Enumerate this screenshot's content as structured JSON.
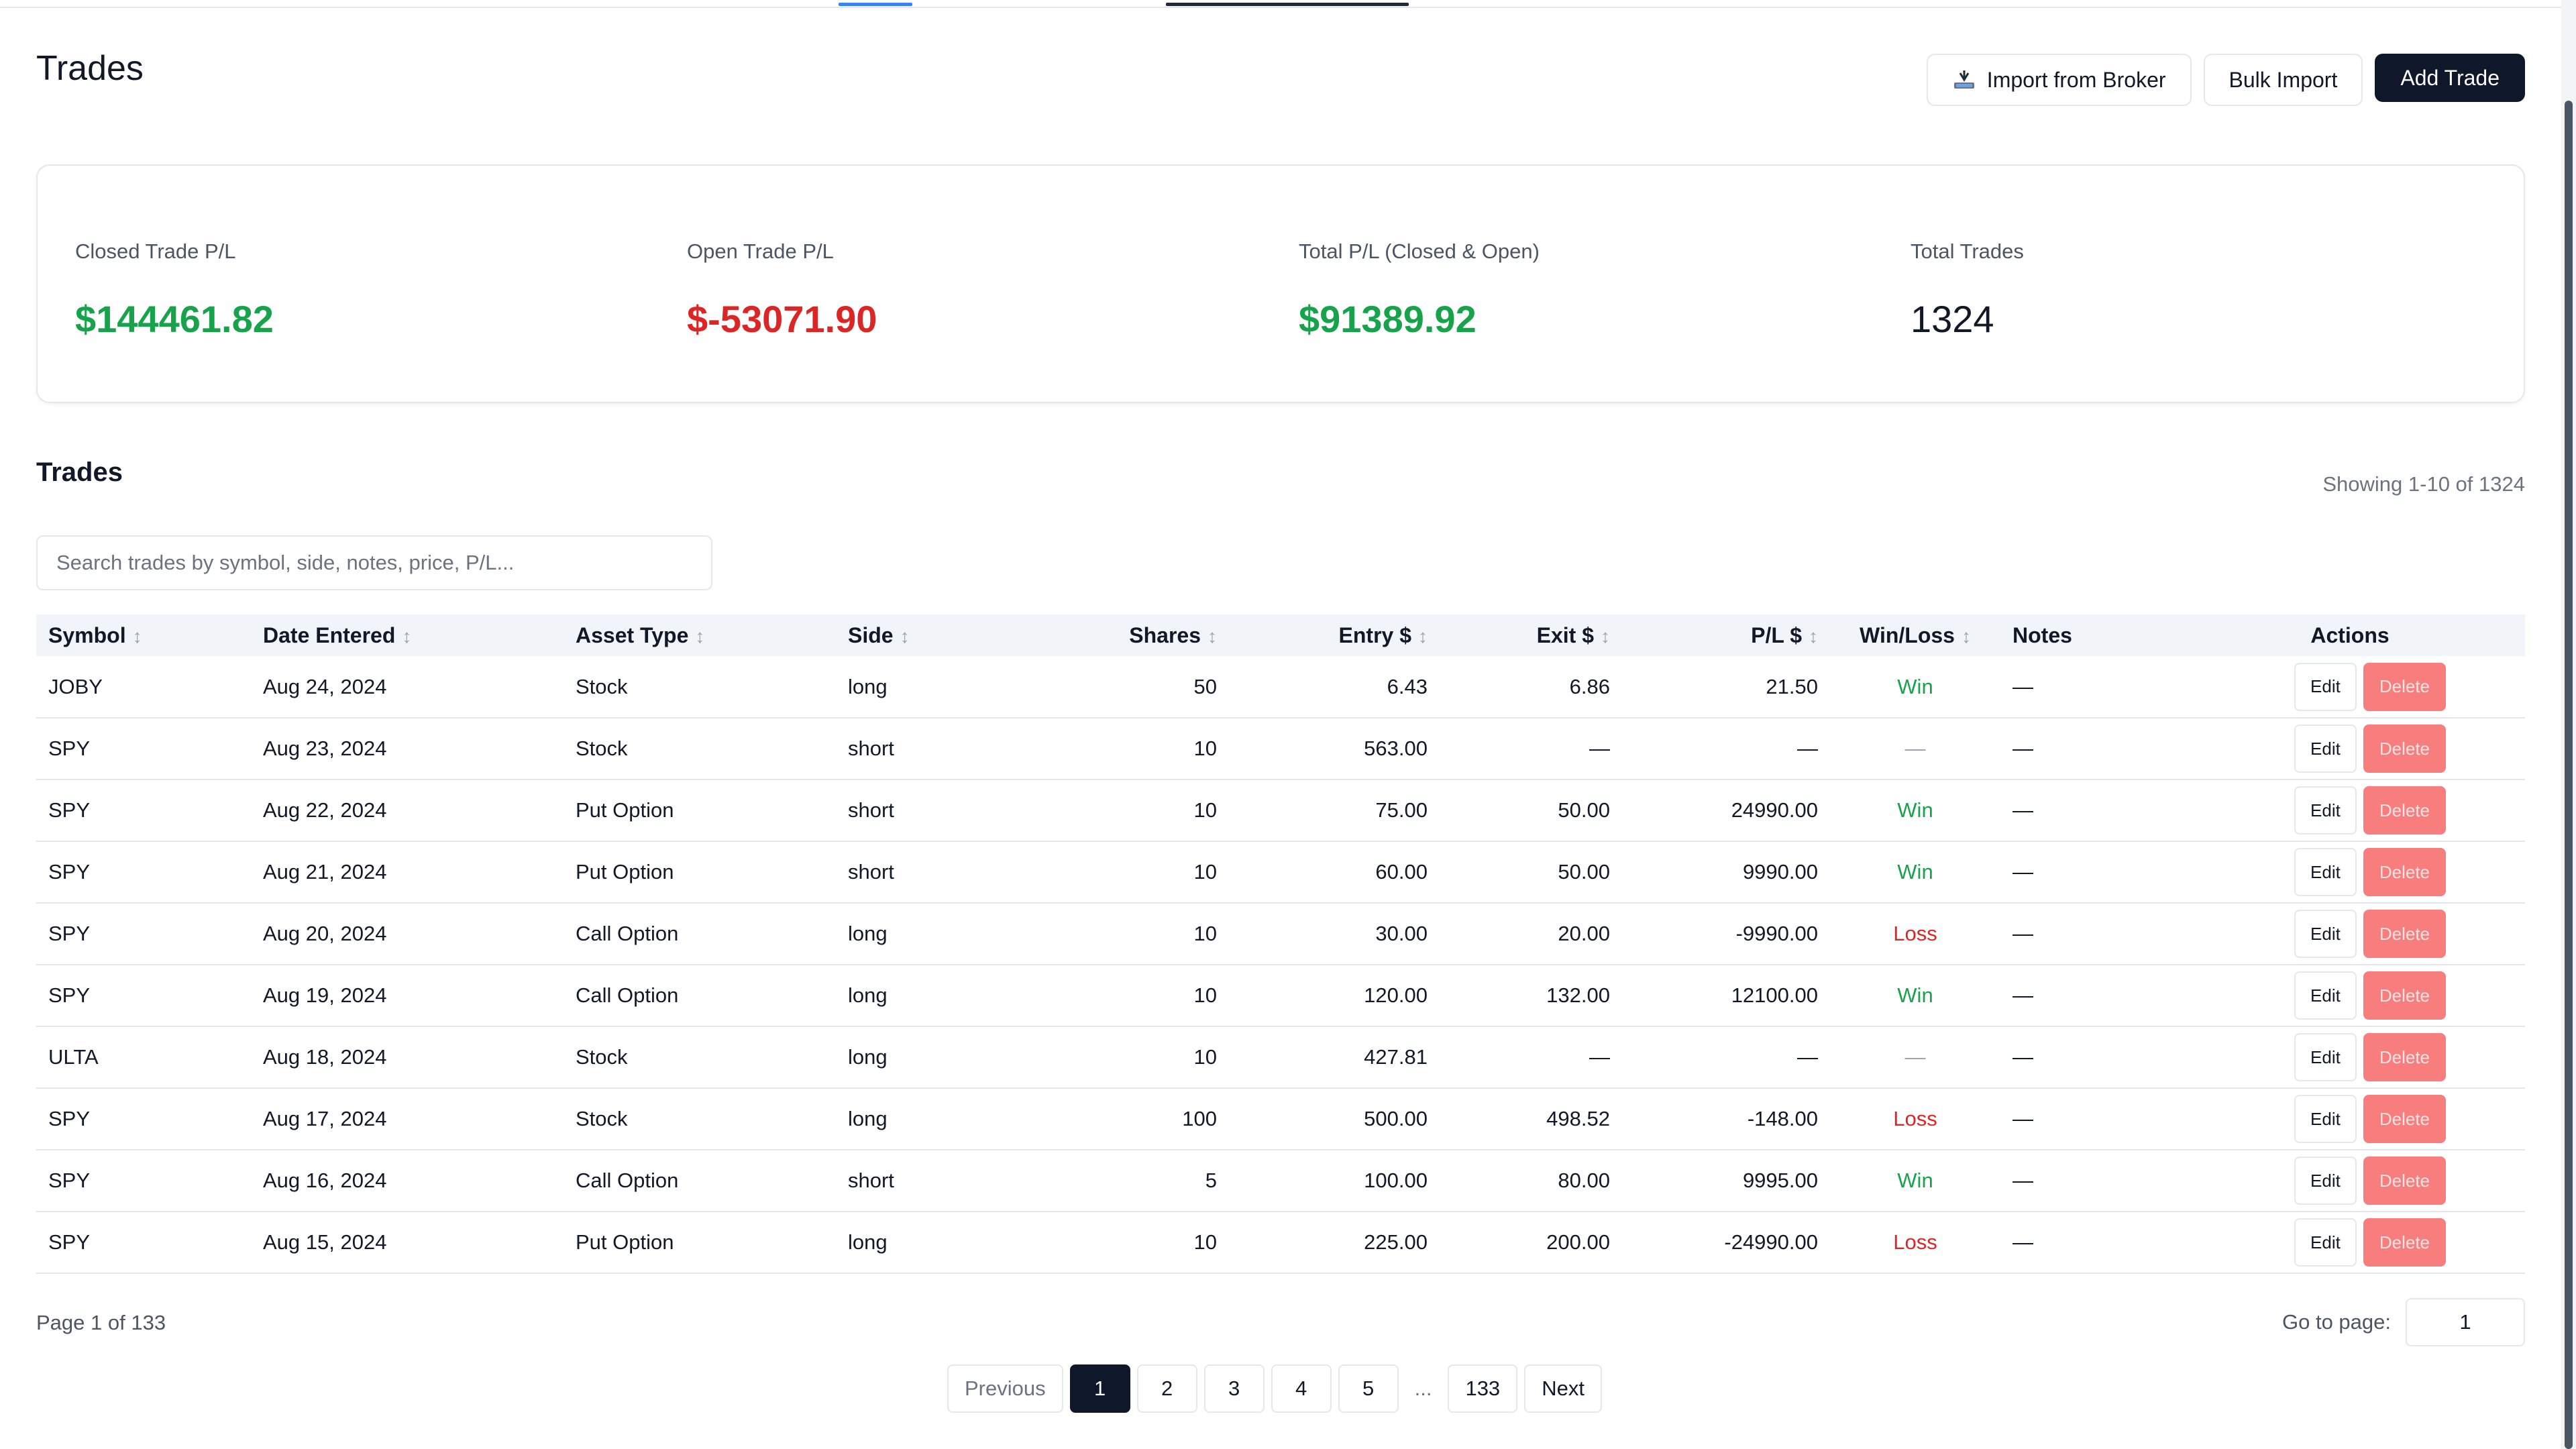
{
  "colors": {
    "positive": "#16a34a",
    "negative": "#dc2626",
    "primary": "#0f172a",
    "delete": "#f87171"
  },
  "header": {
    "title": "Trades",
    "actions": {
      "import_broker": {
        "label": "Import from Broker",
        "icon": "broker-import-icon"
      },
      "bulk_import": {
        "label": "Bulk Import"
      },
      "add_trade": {
        "label": "Add Trade"
      }
    }
  },
  "stats": {
    "closed": {
      "label": "Closed Trade P/L",
      "value": "$144461.82"
    },
    "open": {
      "label": "Open Trade P/L",
      "value": "$-53071.90"
    },
    "total": {
      "label": "Total P/L (Closed & Open)",
      "value": "$91389.92"
    },
    "count": {
      "label": "Total Trades",
      "value": "1324"
    }
  },
  "trades_section": {
    "title": "Trades",
    "showing": "Showing 1-10 of 1324",
    "search_placeholder": "Search trades by symbol, side, notes, price, P/L..."
  },
  "table": {
    "columns": [
      "Symbol",
      "Date Entered",
      "Asset Type",
      "Side",
      "Shares",
      "Entry $",
      "Exit $",
      "P/L $",
      "Win/Loss",
      "Notes",
      "Actions"
    ],
    "edit_label": "Edit",
    "delete_label": "Delete",
    "rows": [
      [
        "JOBY",
        "Aug 24, 2024",
        "Stock",
        "long",
        "50",
        "6.43",
        "6.86",
        "21.50",
        "Win",
        "—"
      ],
      [
        "SPY",
        "Aug 23, 2024",
        "Stock",
        "short",
        "10",
        "563.00",
        "—",
        "—",
        "—",
        "—"
      ],
      [
        "SPY",
        "Aug 22, 2024",
        "Put Option",
        "short",
        "10",
        "75.00",
        "50.00",
        "24990.00",
        "Win",
        "—"
      ],
      [
        "SPY",
        "Aug 21, 2024",
        "Put Option",
        "short",
        "10",
        "60.00",
        "50.00",
        "9990.00",
        "Win",
        "—"
      ],
      [
        "SPY",
        "Aug 20, 2024",
        "Call Option",
        "long",
        "10",
        "30.00",
        "20.00",
        "-9990.00",
        "Loss",
        "—"
      ],
      [
        "SPY",
        "Aug 19, 2024",
        "Call Option",
        "long",
        "10",
        "120.00",
        "132.00",
        "12100.00",
        "Win",
        "—"
      ],
      [
        "ULTA",
        "Aug 18, 2024",
        "Stock",
        "long",
        "10",
        "427.81",
        "—",
        "—",
        "—",
        "—"
      ],
      [
        "SPY",
        "Aug 17, 2024",
        "Stock",
        "long",
        "100",
        "500.00",
        "498.52",
        "-148.00",
        "Loss",
        "—"
      ],
      [
        "SPY",
        "Aug 16, 2024",
        "Call Option",
        "short",
        "5",
        "100.00",
        "80.00",
        "9995.00",
        "Win",
        "—"
      ],
      [
        "SPY",
        "Aug 15, 2024",
        "Put Option",
        "long",
        "10",
        "225.00",
        "200.00",
        "-24990.00",
        "Loss",
        "—"
      ]
    ]
  },
  "pagination": {
    "info": "Page 1 of 133",
    "goto_label": "Go to page:",
    "goto_value": "1",
    "previous": "Previous",
    "next": "Next",
    "pages": [
      "1",
      "2",
      "3",
      "4",
      "5"
    ],
    "ellipsis": "...",
    "last": "133",
    "current": "1"
  }
}
